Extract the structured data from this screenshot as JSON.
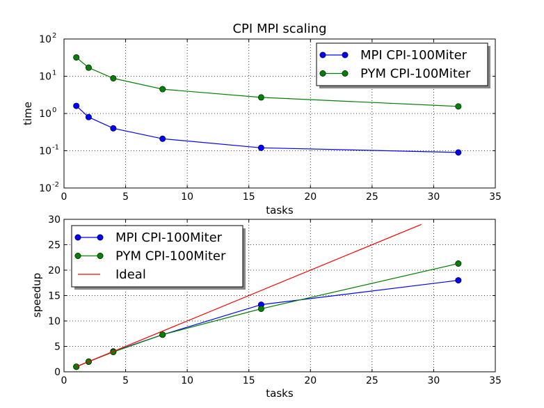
{
  "chart_data": [
    {
      "type": "line",
      "title": "CPI MPI scaling",
      "xlabel": "tasks",
      "ylabel": "time",
      "xlim": [
        0,
        35
      ],
      "ylim": [
        0.01,
        100
      ],
      "yscale": "log",
      "grid": true,
      "legend_position": "top-right",
      "x_ticks": [
        "0",
        "5",
        "10",
        "15",
        "20",
        "25",
        "30",
        "35"
      ],
      "y_ticks": [
        {
          "base": "10",
          "exp": "-2",
          "value": 0.01
        },
        {
          "base": "10",
          "exp": "-1",
          "value": 0.1
        },
        {
          "base": "10",
          "exp": "0",
          "value": 1
        },
        {
          "base": "10",
          "exp": "1",
          "value": 10
        },
        {
          "base": "10",
          "exp": "2",
          "value": 100
        }
      ],
      "series": [
        {
          "name": "MPI CPI-100Miter",
          "color": "#0000ff",
          "marker": "circle",
          "x": [
            1,
            2,
            4,
            8,
            16,
            32
          ],
          "y": [
            1.6,
            0.8,
            0.4,
            0.21,
            0.12,
            0.09
          ]
        },
        {
          "name": "PYM CPI-100Miter",
          "color": "#008000",
          "marker": "circle",
          "x": [
            1,
            2,
            4,
            8,
            16,
            32
          ],
          "y": [
            32,
            17,
            8.8,
            4.5,
            2.7,
            1.55
          ]
        }
      ]
    },
    {
      "type": "line",
      "title": "",
      "xlabel": "tasks",
      "ylabel": "speedup",
      "xlim": [
        0,
        35
      ],
      "ylim": [
        0,
        30
      ],
      "grid": true,
      "legend_position": "top-left",
      "x_ticks": [
        "0",
        "5",
        "10",
        "15",
        "20",
        "25",
        "30",
        "35"
      ],
      "y_ticks": [
        "0",
        "5",
        "10",
        "15",
        "20",
        "25",
        "30"
      ],
      "series": [
        {
          "name": "MPI CPI-100Miter",
          "color": "#0000ff",
          "marker": "circle",
          "x": [
            1,
            2,
            4,
            8,
            16,
            32
          ],
          "y": [
            1,
            2,
            4,
            7.3,
            13.2,
            18
          ]
        },
        {
          "name": "PYM CPI-100Miter",
          "color": "#008000",
          "marker": "circle",
          "x": [
            1,
            2,
            4,
            8,
            16,
            32
          ],
          "y": [
            1,
            2,
            3.9,
            7.3,
            12.4,
            21.3
          ]
        },
        {
          "name": "Ideal",
          "color": "#ff0000",
          "marker": "none",
          "x": [
            1,
            29
          ],
          "y": [
            1,
            29
          ]
        }
      ]
    }
  ]
}
